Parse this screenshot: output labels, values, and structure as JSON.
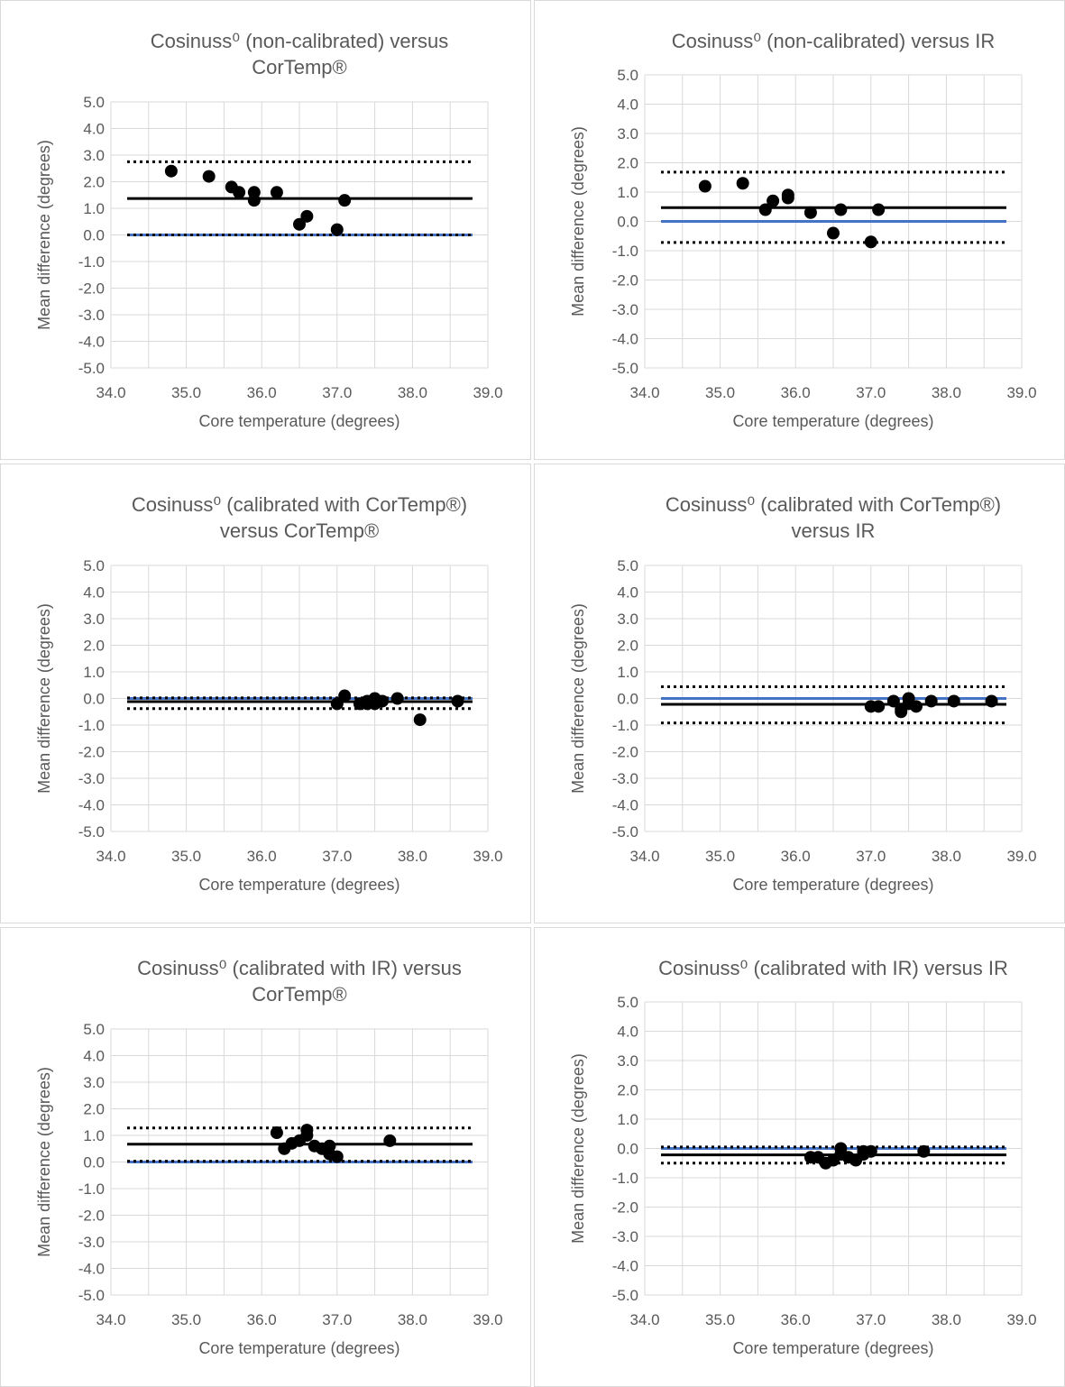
{
  "chart_data": [
    {
      "type": "scatter",
      "title": [
        "Cosinuss⁰ (non-calibrated) versus",
        "CorTemp®"
      ],
      "xlabel": "Core temperature (degrees)",
      "ylabel": "Mean difference (degrees)",
      "xlim": [
        34.0,
        39.0
      ],
      "ylim": [
        -5.0,
        5.0
      ],
      "xticks": [
        "34.0",
        "35.0",
        "36.0",
        "37.0",
        "38.0",
        "39.0"
      ],
      "yticks": [
        "5.0",
        "4.0",
        "3.0",
        "2.0",
        "1.0",
        "0.0",
        "-1.0",
        "-2.0",
        "-3.0",
        "-4.0",
        "-5.0"
      ],
      "grid": true,
      "lines": {
        "zero": 0.0,
        "mean": 1.37,
        "upper_loa": 2.75,
        "lower_loa": 0.0
      },
      "points": [
        [
          34.8,
          2.4
        ],
        [
          35.3,
          2.2
        ],
        [
          35.6,
          1.8
        ],
        [
          35.7,
          1.6
        ],
        [
          35.9,
          1.3
        ],
        [
          35.9,
          1.6
        ],
        [
          36.2,
          1.6
        ],
        [
          36.5,
          0.4
        ],
        [
          36.6,
          0.7
        ],
        [
          37.0,
          0.2
        ],
        [
          37.1,
          1.3
        ]
      ]
    },
    {
      "type": "scatter",
      "title": [
        "Cosinuss⁰ (non-calibrated) versus IR"
      ],
      "xlabel": "Core temperature (degrees)",
      "ylabel": "Mean difference (degrees)",
      "xlim": [
        34.0,
        39.0
      ],
      "ylim": [
        -5.0,
        5.0
      ],
      "xticks": [
        "34.0",
        "35.0",
        "36.0",
        "37.0",
        "38.0",
        "39.0"
      ],
      "yticks": [
        "5.0",
        "4.0",
        "3.0",
        "2.0",
        "1.0",
        "0.0",
        "-1.0",
        "-2.0",
        "-3.0",
        "-4.0",
        "-5.0"
      ],
      "grid": true,
      "lines": {
        "zero": 0.0,
        "mean": 0.47,
        "upper_loa": 1.68,
        "lower_loa": -0.72
      },
      "points": [
        [
          34.8,
          1.2
        ],
        [
          35.3,
          1.3
        ],
        [
          35.6,
          0.4
        ],
        [
          35.7,
          0.7
        ],
        [
          35.9,
          0.8
        ],
        [
          35.9,
          0.9
        ],
        [
          36.2,
          0.3
        ],
        [
          36.5,
          -0.4
        ],
        [
          36.6,
          0.4
        ],
        [
          37.0,
          -0.7
        ],
        [
          37.1,
          0.4
        ]
      ]
    },
    {
      "type": "scatter",
      "title": [
        "Cosinuss⁰ (calibrated with CorTemp®)",
        "versus CorTemp®"
      ],
      "xlabel": "Core temperature (degrees)",
      "ylabel": "Mean difference (degrees)",
      "xlim": [
        34.0,
        39.0
      ],
      "ylim": [
        -5.0,
        5.0
      ],
      "xticks": [
        "34.0",
        "35.0",
        "36.0",
        "37.0",
        "38.0",
        "39.0"
      ],
      "yticks": [
        "5.0",
        "4.0",
        "3.0",
        "2.0",
        "1.0",
        "0.0",
        "-1.0",
        "-2.0",
        "-3.0",
        "-4.0",
        "-5.0"
      ],
      "grid": true,
      "lines": {
        "zero": 0.0,
        "mean": -0.12,
        "upper_loa": 0.02,
        "lower_loa": -0.38
      },
      "points": [
        [
          37.0,
          -0.2
        ],
        [
          37.1,
          0.1
        ],
        [
          37.3,
          -0.2
        ],
        [
          37.4,
          -0.2
        ],
        [
          37.4,
          -0.1
        ],
        [
          37.5,
          0.0
        ],
        [
          37.5,
          -0.2
        ],
        [
          37.6,
          -0.1
        ],
        [
          37.8,
          0.0
        ],
        [
          38.1,
          -0.8
        ],
        [
          38.6,
          -0.1
        ]
      ]
    },
    {
      "type": "scatter",
      "title": [
        "Cosinuss⁰ (calibrated with CorTemp®)",
        "versus IR"
      ],
      "xlabel": "Core temperature (degrees)",
      "ylabel": "Mean difference (degrees)",
      "xlim": [
        34.0,
        39.0
      ],
      "ylim": [
        -5.0,
        5.0
      ],
      "xticks": [
        "34.0",
        "35.0",
        "36.0",
        "37.0",
        "38.0",
        "39.0"
      ],
      "yticks": [
        "5.0",
        "4.0",
        "3.0",
        "2.0",
        "1.0",
        "0.0",
        "-1.0",
        "-2.0",
        "-3.0",
        "-4.0",
        "-5.0"
      ],
      "grid": true,
      "lines": {
        "zero": 0.0,
        "mean": -0.22,
        "upper_loa": 0.44,
        "lower_loa": -0.92
      },
      "points": [
        [
          37.0,
          -0.3
        ],
        [
          37.1,
          -0.3
        ],
        [
          37.3,
          -0.1
        ],
        [
          37.4,
          -0.5
        ],
        [
          37.4,
          -0.4
        ],
        [
          37.5,
          0.0
        ],
        [
          37.5,
          -0.2
        ],
        [
          37.6,
          -0.3
        ],
        [
          37.8,
          -0.1
        ],
        [
          38.1,
          -0.1
        ],
        [
          38.6,
          -0.1
        ]
      ]
    },
    {
      "type": "scatter",
      "title": [
        "Cosinuss⁰ (calibrated with IR) versus",
        "CorTemp®"
      ],
      "xlabel": "Core temperature (degrees)",
      "ylabel": "Mean difference (degrees)",
      "xlim": [
        34.0,
        39.0
      ],
      "ylim": [
        -5.0,
        5.0
      ],
      "xticks": [
        "34.0",
        "35.0",
        "36.0",
        "37.0",
        "38.0",
        "39.0"
      ],
      "yticks": [
        "5.0",
        "4.0",
        "3.0",
        "2.0",
        "1.0",
        "0.0",
        "-1.0",
        "-2.0",
        "-3.0",
        "-4.0",
        "-5.0"
      ],
      "grid": true,
      "lines": {
        "zero": 0.0,
        "mean": 0.67,
        "upper_loa": 1.28,
        "lower_loa": 0.03
      },
      "points": [
        [
          36.2,
          1.1
        ],
        [
          36.3,
          0.5
        ],
        [
          36.4,
          0.7
        ],
        [
          36.5,
          0.8
        ],
        [
          36.6,
          1.2
        ],
        [
          36.6,
          1.0
        ],
        [
          36.7,
          0.6
        ],
        [
          36.8,
          0.5
        ],
        [
          36.9,
          0.3
        ],
        [
          36.9,
          0.6
        ],
        [
          37.0,
          0.2
        ],
        [
          37.7,
          0.8
        ]
      ]
    },
    {
      "type": "scatter",
      "title": [
        "Cosinuss⁰ (calibrated with IR) versus IR"
      ],
      "xlabel": "Core temperature (degrees)",
      "ylabel": "Mean difference (degrees)",
      "xlim": [
        34.0,
        39.0
      ],
      "ylim": [
        -5.0,
        5.0
      ],
      "xticks": [
        "34.0",
        "35.0",
        "36.0",
        "37.0",
        "38.0",
        "39.0"
      ],
      "yticks": [
        "5.0",
        "4.0",
        "3.0",
        "2.0",
        "1.0",
        "0.0",
        "-1.0",
        "-2.0",
        "-3.0",
        "-4.0",
        "-5.0"
      ],
      "grid": true,
      "lines": {
        "zero": 0.0,
        "mean": -0.22,
        "upper_loa": 0.05,
        "lower_loa": -0.5
      },
      "points": [
        [
          36.2,
          -0.3
        ],
        [
          36.3,
          -0.3
        ],
        [
          36.4,
          -0.5
        ],
        [
          36.5,
          -0.4
        ],
        [
          36.6,
          0.0
        ],
        [
          36.6,
          -0.2
        ],
        [
          36.7,
          -0.3
        ],
        [
          36.8,
          -0.4
        ],
        [
          36.9,
          -0.1
        ],
        [
          36.9,
          -0.2
        ],
        [
          37.0,
          -0.1
        ],
        [
          37.7,
          -0.1
        ]
      ]
    }
  ],
  "colors": {
    "zero_line": "#4472c4",
    "mean_line": "#000000",
    "points": "#000000",
    "grid": "#d9d9d9",
    "text": "#595959"
  }
}
